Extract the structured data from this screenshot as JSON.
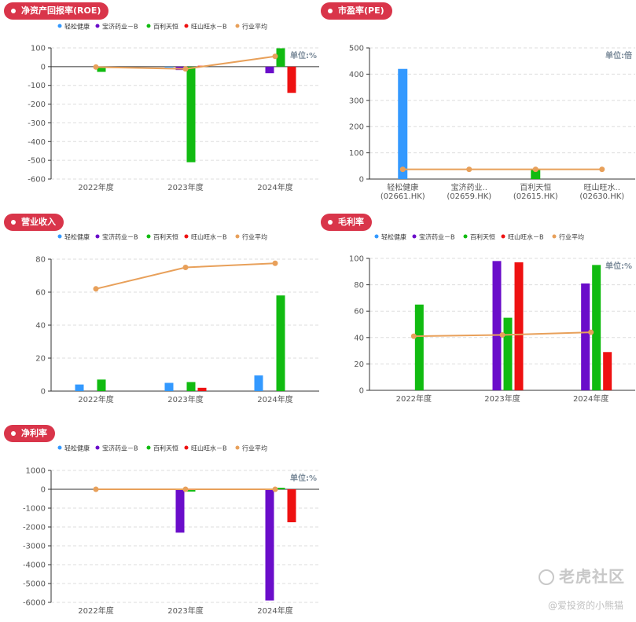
{
  "colors": {
    "pill": "#d9354a",
    "axis": "#333333",
    "grid": "#dddddd",
    "tick_text": "#555555",
    "unit_text": "#7a8a99"
  },
  "watermark": {
    "brand": "老虎社区",
    "author": "@爱投资的小熊猫"
  },
  "chart_data": [
    {
      "id": "roe",
      "type": "bar",
      "title": "净资产回报率(ROE)",
      "unit": "单位:%",
      "categories": [
        "2022年度",
        "2023年度",
        "2024年度"
      ],
      "ylim": [
        -600,
        100
      ],
      "yticks": [
        100,
        0,
        -100,
        -200,
        -300,
        -400,
        -500,
        -600
      ],
      "legend": true,
      "series": [
        {
          "name": "轻松健康",
          "color": "#3399ff",
          "values": [
            null,
            -5,
            null
          ]
        },
        {
          "name": "宝济药业－B",
          "color": "#6a0dca",
          "values": [
            null,
            -18,
            -35
          ]
        },
        {
          "name": "百利天恒",
          "color": "#11bb11",
          "values": [
            -28,
            -510,
            98
          ]
        },
        {
          "name": "旺山旺水－B",
          "color": "#ee1111",
          "values": [
            null,
            5,
            -140
          ]
        }
      ],
      "line": {
        "name": "行业平均",
        "color": "#e8a05a",
        "values": [
          -2,
          -12,
          55
        ]
      }
    },
    {
      "id": "pe",
      "type": "bar",
      "title": "市盈率(PE)",
      "unit": "单位:倍",
      "categories": [
        [
          "轻松健康",
          "(02661.HK)"
        ],
        [
          "宝济药业..",
          "(02659.HK)"
        ],
        [
          "百利天恒",
          "(02615.HK)"
        ],
        [
          "旺山旺水..",
          "(02630.HK)"
        ]
      ],
      "ylim": [
        0,
        500
      ],
      "yticks": [
        500,
        400,
        300,
        200,
        100,
        0
      ],
      "legend": false,
      "series": [
        {
          "name": "市盈率",
          "color": "#3399ff",
          "values": [
            420,
            null,
            null,
            null
          ],
          "colors": [
            "#3399ff",
            "#6a0dca",
            "#11bb11",
            "#ee1111"
          ]
        }
      ],
      "seriesValuesByCategory": [
        420,
        null,
        38,
        null
      ],
      "line": {
        "name": "行业平均",
        "color": "#e8a05a",
        "values": [
          37,
          37,
          37,
          37
        ]
      }
    },
    {
      "id": "revenue",
      "type": "bar",
      "title": "营业收入",
      "unit": "",
      "categories": [
        "2022年度",
        "2023年度",
        "2024年度"
      ],
      "ylim": [
        0,
        80
      ],
      "yticks": [
        80,
        60,
        40,
        20,
        0
      ],
      "legend": true,
      "series": [
        {
          "name": "轻松健康",
          "color": "#3399ff",
          "values": [
            4,
            5,
            9.5
          ]
        },
        {
          "name": "宝济药业－B",
          "color": "#6a0dca",
          "values": [
            null,
            null,
            null
          ]
        },
        {
          "name": "百利天恒",
          "color": "#11bb11",
          "values": [
            7,
            5.5,
            58
          ]
        },
        {
          "name": "旺山旺水－B",
          "color": "#ee1111",
          "values": [
            null,
            2,
            null
          ]
        }
      ],
      "line": {
        "name": "行业平均",
        "color": "#e8a05a",
        "values": [
          62,
          75,
          77.5
        ]
      }
    },
    {
      "id": "gross",
      "type": "bar",
      "title": "毛利率",
      "unit": "单位:%",
      "categories": [
        "2022年度",
        "2023年度",
        "2024年度"
      ],
      "ylim": [
        0,
        100
      ],
      "yticks": [
        100,
        80,
        60,
        40,
        20,
        0
      ],
      "legend": true,
      "series": [
        {
          "name": "轻松健康",
          "color": "#3399ff",
          "values": [
            null,
            null,
            null
          ]
        },
        {
          "name": "宝济药业－B",
          "color": "#6a0dca",
          "values": [
            null,
            98,
            81
          ]
        },
        {
          "name": "百利天恒",
          "color": "#11bb11",
          "values": [
            65,
            55,
            95
          ]
        },
        {
          "name": "旺山旺水－B",
          "color": "#ee1111",
          "values": [
            null,
            97,
            29
          ]
        }
      ],
      "line": {
        "name": "行业平均",
        "color": "#e8a05a",
        "values": [
          41,
          42,
          44
        ]
      }
    },
    {
      "id": "net",
      "type": "bar",
      "title": "净利率",
      "unit": "单位:%",
      "categories": [
        "2022年度",
        "2023年度",
        "2024年度"
      ],
      "ylim": [
        -6000,
        1000
      ],
      "yticks": [
        1000,
        0,
        -1000,
        -2000,
        -3000,
        -4000,
        -5000,
        -6000
      ],
      "legend": true,
      "series": [
        {
          "name": "轻松健康",
          "color": "#3399ff",
          "values": [
            null,
            null,
            null
          ]
        },
        {
          "name": "宝济药业－B",
          "color": "#6a0dca",
          "values": [
            null,
            -2300,
            -5900
          ]
        },
        {
          "name": "百利天恒",
          "color": "#11bb11",
          "values": [
            null,
            -120,
            80
          ]
        },
        {
          "name": "旺山旺水－B",
          "color": "#ee1111",
          "values": [
            null,
            null,
            -1750
          ]
        }
      ],
      "line": {
        "name": "行业平均",
        "color": "#e8a05a",
        "values": [
          0,
          0,
          0
        ]
      }
    }
  ]
}
